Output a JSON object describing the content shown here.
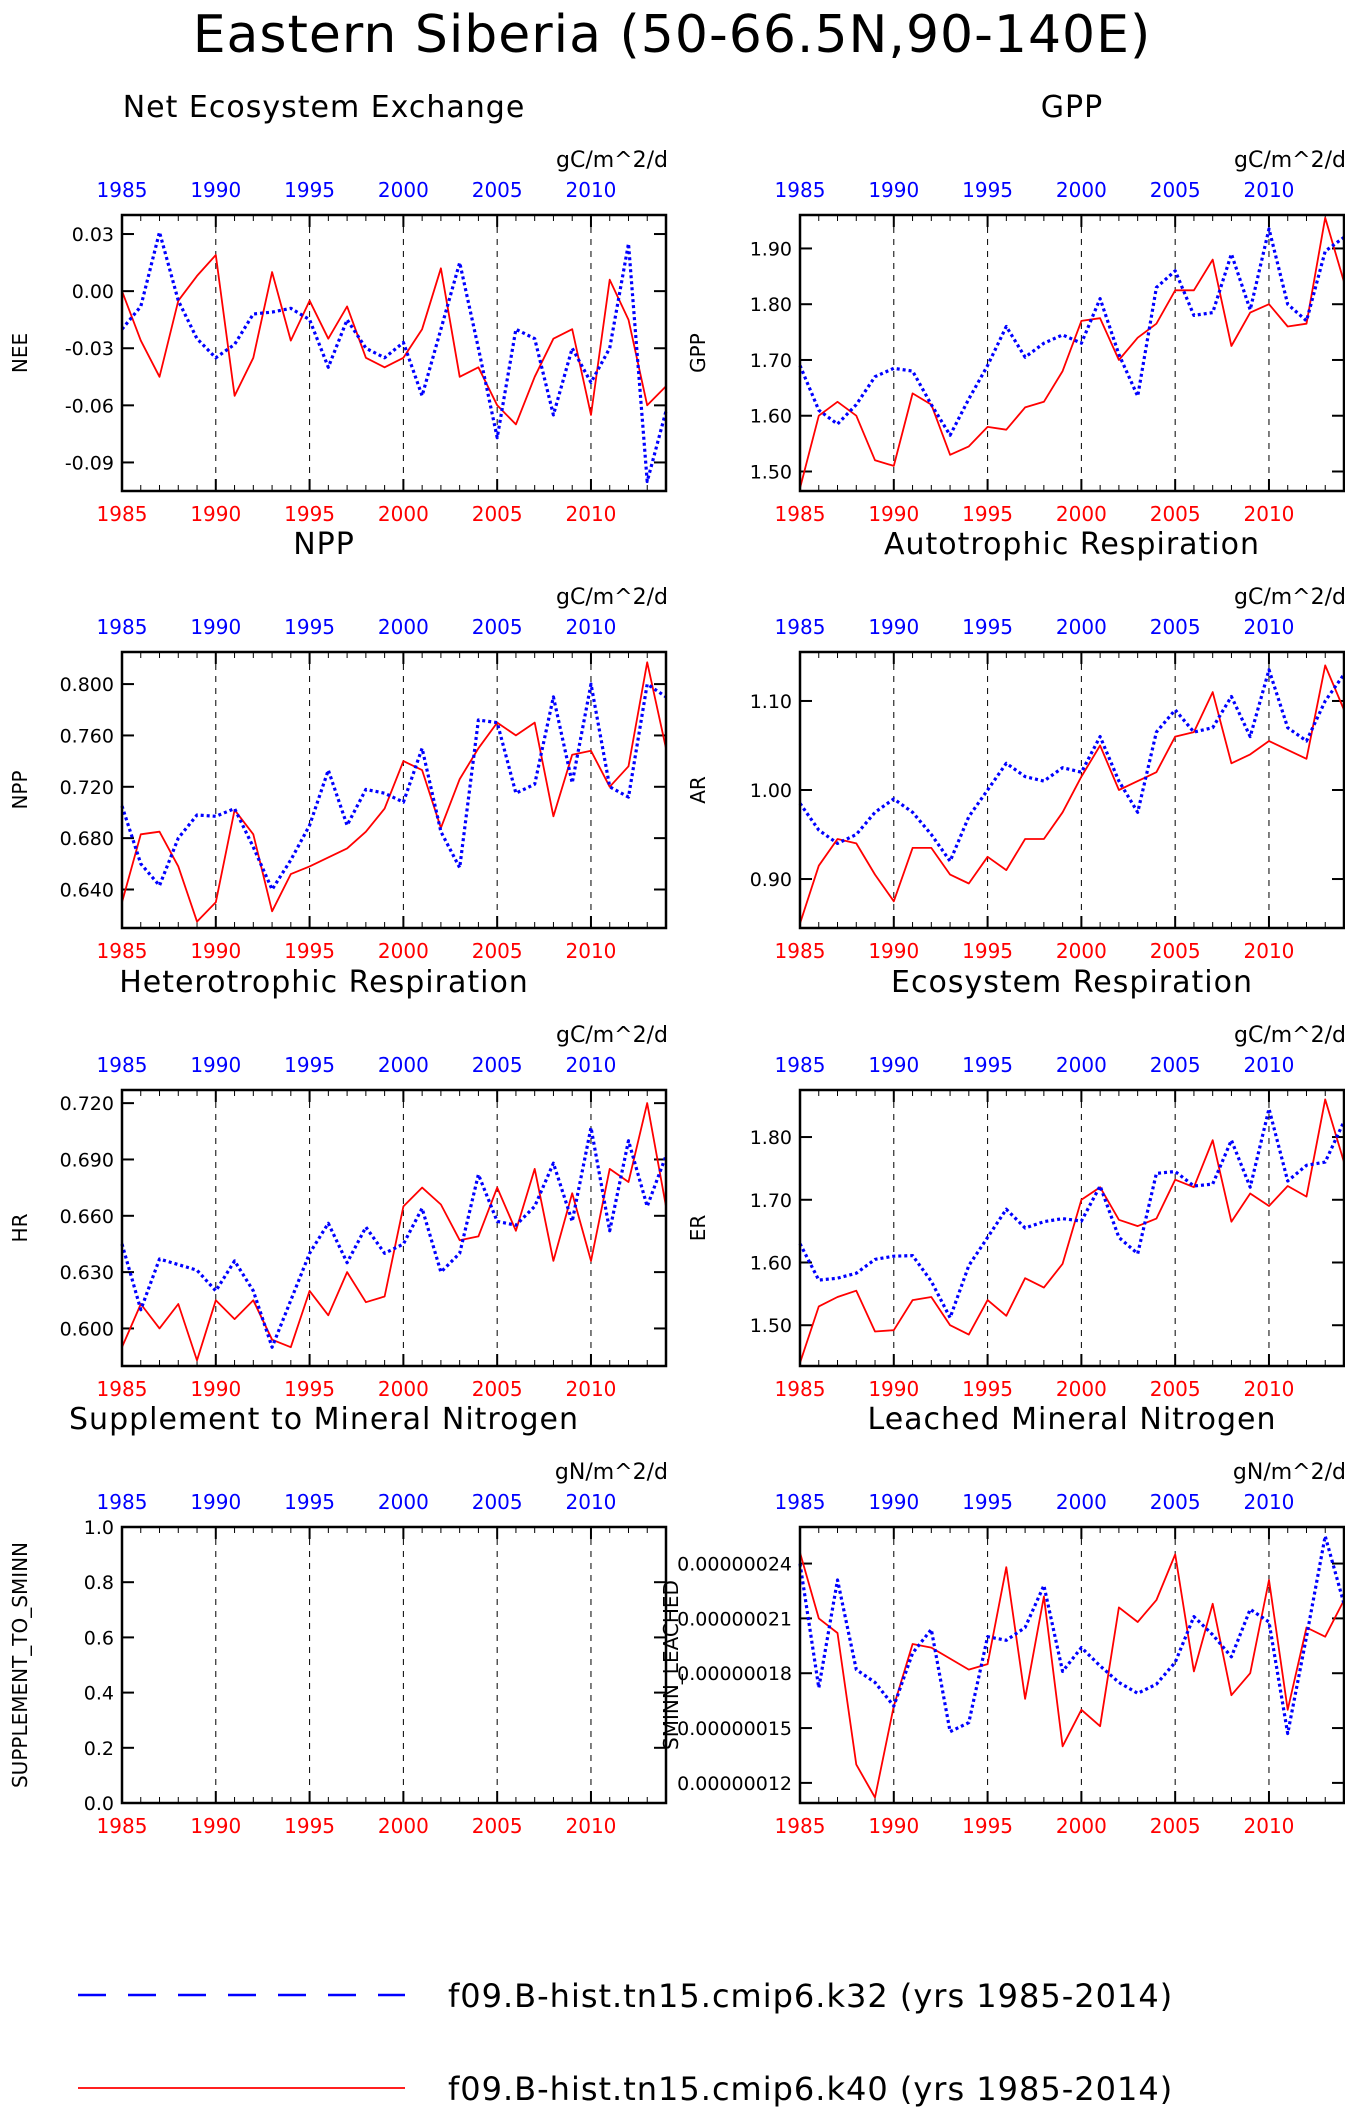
{
  "figure": {
    "title": "Eastern Siberia (50-66.5N,90-140E)",
    "colors": {
      "k32": "#0000ff",
      "k40": "#ff0000",
      "axes": "#000000"
    }
  },
  "legend": [
    {
      "name": "f09.B-hist.tn15.cmip6.k32 (yrs 1985-2014)",
      "color": "#0000ff",
      "style": "dashed"
    },
    {
      "name": "f09.B-hist.tn15.cmip6.k40 (yrs 1985-2014)",
      "color": "#ff0000",
      "style": "solid"
    }
  ],
  "chart_data": [
    {
      "type": "line",
      "title": "Net Ecosystem Exchange",
      "ylabel": "NEE",
      "units": "gC/m^2/d",
      "xlim": [
        1985,
        2014
      ],
      "ylim": [
        -0.105,
        0.04
      ],
      "xticks": [
        1985,
        1990,
        1995,
        2000,
        2005,
        2010
      ],
      "yticks": [
        0.03,
        0.0,
        -0.03,
        -0.06,
        -0.09
      ],
      "ytick_labels": [
        "0.03",
        "0.00",
        "-0.03",
        "-0.06",
        "-0.09"
      ],
      "x": [
        1985,
        1986,
        1987,
        1988,
        1989,
        1990,
        1991,
        1992,
        1993,
        1994,
        1995,
        1996,
        1997,
        1998,
        1999,
        2000,
        2001,
        2002,
        2003,
        2004,
        2005,
        2006,
        2007,
        2008,
        2009,
        2010,
        2011,
        2012,
        2013,
        2014
      ],
      "series": [
        {
          "name": "f09.B-hist.tn15.cmip6.k32",
          "values": [
            -0.02,
            -0.008,
            0.031,
            -0.005,
            -0.025,
            -0.035,
            -0.028,
            -0.012,
            -0.011,
            -0.009,
            -0.015,
            -0.04,
            -0.015,
            -0.03,
            -0.035,
            -0.027,
            -0.055,
            -0.02,
            0.015,
            -0.03,
            -0.077,
            -0.02,
            -0.025,
            -0.065,
            -0.03,
            -0.048,
            -0.03,
            0.025,
            -0.1,
            -0.063
          ]
        },
        {
          "name": "f09.B-hist.tn15.cmip6.k40",
          "values": [
            0.0,
            -0.026,
            -0.045,
            -0.005,
            0.008,
            0.019,
            -0.055,
            -0.035,
            0.01,
            -0.026,
            -0.005,
            -0.025,
            -0.008,
            -0.035,
            -0.04,
            -0.035,
            -0.02,
            0.012,
            -0.045,
            -0.04,
            -0.06,
            -0.07,
            -0.045,
            -0.025,
            -0.02,
            -0.065,
            0.006,
            -0.015,
            -0.06,
            -0.05
          ]
        }
      ]
    },
    {
      "type": "line",
      "title": "GPP",
      "ylabel": "GPP",
      "units": "gC/m^2/d",
      "xlim": [
        1985,
        2014
      ],
      "ylim": [
        1.465,
        1.96
      ],
      "xticks": [
        1985,
        1990,
        1995,
        2000,
        2005,
        2010
      ],
      "yticks": [
        1.9,
        1.8,
        1.7,
        1.6,
        1.5
      ],
      "ytick_labels": [
        "1.90",
        "1.80",
        "1.70",
        "1.60",
        "1.50"
      ],
      "x": [
        1985,
        1986,
        1987,
        1988,
        1989,
        1990,
        1991,
        1992,
        1993,
        1994,
        1995,
        1996,
        1997,
        1998,
        1999,
        2000,
        2001,
        2002,
        2003,
        2004,
        2005,
        2006,
        2007,
        2008,
        2009,
        2010,
        2011,
        2012,
        2013,
        2014
      ],
      "series": [
        {
          "name": "f09.B-hist.tn15.cmip6.k32",
          "values": [
            1.69,
            1.61,
            1.585,
            1.62,
            1.67,
            1.685,
            1.68,
            1.62,
            1.565,
            1.63,
            1.69,
            1.76,
            1.705,
            1.73,
            1.745,
            1.73,
            1.81,
            1.71,
            1.635,
            1.83,
            1.86,
            1.78,
            1.785,
            1.89,
            1.79,
            1.935,
            1.8,
            1.77,
            1.895,
            1.92
          ]
        },
        {
          "name": "f09.B-hist.tn15.cmip6.k40",
          "values": [
            1.47,
            1.6,
            1.625,
            1.6,
            1.52,
            1.51,
            1.64,
            1.62,
            1.53,
            1.545,
            1.58,
            1.575,
            1.615,
            1.625,
            1.68,
            1.77,
            1.775,
            1.7,
            1.74,
            1.765,
            1.825,
            1.825,
            1.88,
            1.725,
            1.785,
            1.8,
            1.76,
            1.765,
            1.955,
            1.84
          ]
        }
      ]
    },
    {
      "type": "line",
      "title": "NPP",
      "ylabel": "NPP",
      "units": "gC/m^2/d",
      "xlim": [
        1985,
        2014
      ],
      "ylim": [
        0.61,
        0.825
      ],
      "xticks": [
        1985,
        1990,
        1995,
        2000,
        2005,
        2010
      ],
      "yticks": [
        0.8,
        0.76,
        0.72,
        0.68,
        0.64
      ],
      "ytick_labels": [
        "0.800",
        "0.760",
        "0.720",
        "0.680",
        "0.640"
      ],
      "x": [
        1985,
        1986,
        1987,
        1988,
        1989,
        1990,
        1991,
        1992,
        1993,
        1994,
        1995,
        1996,
        1997,
        1998,
        1999,
        2000,
        2001,
        2002,
        2003,
        2004,
        2005,
        2006,
        2007,
        2008,
        2009,
        2010,
        2011,
        2012,
        2013,
        2014
      ],
      "series": [
        {
          "name": "f09.B-hist.tn15.cmip6.k32",
          "values": [
            0.705,
            0.66,
            0.643,
            0.68,
            0.698,
            0.697,
            0.703,
            0.673,
            0.64,
            0.663,
            0.69,
            0.733,
            0.69,
            0.718,
            0.715,
            0.708,
            0.75,
            0.685,
            0.657,
            0.772,
            0.77,
            0.715,
            0.722,
            0.79,
            0.723,
            0.8,
            0.72,
            0.712,
            0.8,
            0.79
          ]
        },
        {
          "name": "f09.B-hist.tn15.cmip6.k40",
          "values": [
            0.63,
            0.683,
            0.685,
            0.658,
            0.615,
            0.63,
            0.702,
            0.683,
            0.623,
            0.652,
            0.658,
            0.665,
            0.672,
            0.685,
            0.703,
            0.74,
            0.733,
            0.688,
            0.726,
            0.75,
            0.77,
            0.76,
            0.77,
            0.697,
            0.745,
            0.748,
            0.72,
            0.736,
            0.817,
            0.75
          ]
        }
      ]
    },
    {
      "type": "line",
      "title": "Autotrophic Respiration",
      "ylabel": "AR",
      "units": "gC/m^2/d",
      "xlim": [
        1985,
        2014
      ],
      "ylim": [
        0.845,
        1.155
      ],
      "xticks": [
        1985,
        1990,
        1995,
        2000,
        2005,
        2010
      ],
      "yticks": [
        1.1,
        1.0,
        0.9
      ],
      "ytick_labels": [
        "1.10",
        "1.00",
        "0.90"
      ],
      "x": [
        1985,
        1986,
        1987,
        1988,
        1989,
        1990,
        1991,
        1992,
        1993,
        1994,
        1995,
        1996,
        1997,
        1998,
        1999,
        2000,
        2001,
        2002,
        2003,
        2004,
        2005,
        2006,
        2007,
        2008,
        2009,
        2010,
        2011,
        2012,
        2013,
        2014
      ],
      "series": [
        {
          "name": "f09.B-hist.tn15.cmip6.k32",
          "values": [
            0.985,
            0.955,
            0.94,
            0.95,
            0.975,
            0.99,
            0.975,
            0.95,
            0.92,
            0.97,
            1.0,
            1.03,
            1.015,
            1.01,
            1.025,
            1.02,
            1.06,
            1.01,
            0.975,
            1.065,
            1.09,
            1.065,
            1.07,
            1.105,
            1.06,
            1.135,
            1.07,
            1.055,
            1.1,
            1.13
          ]
        },
        {
          "name": "f09.B-hist.tn15.cmip6.k40",
          "values": [
            0.85,
            0.915,
            0.945,
            0.94,
            0.905,
            0.875,
            0.935,
            0.935,
            0.905,
            0.895,
            0.925,
            0.91,
            0.945,
            0.945,
            0.975,
            1.015,
            1.05,
            1.0,
            1.01,
            1.02,
            1.06,
            1.065,
            1.11,
            1.03,
            1.04,
            1.055,
            1.045,
            1.035,
            1.14,
            1.09
          ]
        }
      ]
    },
    {
      "type": "line",
      "title": "Heterotrophic Respiration",
      "ylabel": "HR",
      "units": "gC/m^2/d",
      "xlim": [
        1985,
        2014
      ],
      "ylim": [
        0.58,
        0.727
      ],
      "xticks": [
        1985,
        1990,
        1995,
        2000,
        2005,
        2010
      ],
      "yticks": [
        0.72,
        0.69,
        0.66,
        0.63,
        0.6
      ],
      "ytick_labels": [
        "0.720",
        "0.690",
        "0.660",
        "0.630",
        "0.600"
      ],
      "x": [
        1985,
        1986,
        1987,
        1988,
        1989,
        1990,
        1991,
        1992,
        1993,
        1994,
        1995,
        1996,
        1997,
        1998,
        1999,
        2000,
        2001,
        2002,
        2003,
        2004,
        2005,
        2006,
        2007,
        2008,
        2009,
        2010,
        2011,
        2012,
        2013,
        2014
      ],
      "series": [
        {
          "name": "f09.B-hist.tn15.cmip6.k32",
          "values": [
            0.645,
            0.61,
            0.637,
            0.634,
            0.631,
            0.62,
            0.636,
            0.62,
            0.59,
            0.615,
            0.64,
            0.656,
            0.635,
            0.654,
            0.64,
            0.645,
            0.664,
            0.63,
            0.64,
            0.682,
            0.657,
            0.655,
            0.665,
            0.688,
            0.657,
            0.707,
            0.652,
            0.7,
            0.665,
            0.692
          ]
        },
        {
          "name": "f09.B-hist.tn15.cmip6.k40",
          "values": [
            0.59,
            0.613,
            0.6,
            0.613,
            0.583,
            0.615,
            0.605,
            0.615,
            0.594,
            0.59,
            0.62,
            0.607,
            0.63,
            0.614,
            0.617,
            0.665,
            0.675,
            0.666,
            0.647,
            0.649,
            0.675,
            0.652,
            0.685,
            0.636,
            0.672,
            0.636,
            0.685,
            0.678,
            0.72,
            0.665
          ]
        }
      ]
    },
    {
      "type": "line",
      "title": "Ecosystem Respiration",
      "ylabel": "ER",
      "units": "gC/m^2/d",
      "xlim": [
        1985,
        2014
      ],
      "ylim": [
        1.435,
        1.875
      ],
      "xticks": [
        1985,
        1990,
        1995,
        2000,
        2005,
        2010
      ],
      "yticks": [
        1.8,
        1.7,
        1.6,
        1.5
      ],
      "ytick_labels": [
        "1.80",
        "1.70",
        "1.60",
        "1.50"
      ],
      "x": [
        1985,
        1986,
        1987,
        1988,
        1989,
        1990,
        1991,
        1992,
        1993,
        1994,
        1995,
        1996,
        1997,
        1998,
        1999,
        2000,
        2001,
        2002,
        2003,
        2004,
        2005,
        2006,
        2007,
        2008,
        2009,
        2010,
        2011,
        2012,
        2013,
        2014
      ],
      "series": [
        {
          "name": "f09.B-hist.tn15.cmip6.k32",
          "values": [
            1.63,
            1.572,
            1.575,
            1.583,
            1.605,
            1.61,
            1.611,
            1.57,
            1.512,
            1.595,
            1.64,
            1.685,
            1.655,
            1.665,
            1.67,
            1.666,
            1.722,
            1.64,
            1.614,
            1.742,
            1.745,
            1.722,
            1.725,
            1.795,
            1.72,
            1.845,
            1.73,
            1.755,
            1.76,
            1.825
          ]
        },
        {
          "name": "f09.B-hist.tn15.cmip6.k40",
          "values": [
            1.44,
            1.53,
            1.545,
            1.555,
            1.49,
            1.492,
            1.54,
            1.545,
            1.5,
            1.485,
            1.54,
            1.515,
            1.575,
            1.56,
            1.598,
            1.7,
            1.72,
            1.668,
            1.658,
            1.67,
            1.732,
            1.72,
            1.795,
            1.665,
            1.71,
            1.69,
            1.722,
            1.705,
            1.86,
            1.76
          ]
        }
      ]
    },
    {
      "type": "line",
      "title": "Supplement to Mineral Nitrogen",
      "ylabel": "SUPPLEMENT_TO_SMINN",
      "units": "gN/m^2/d",
      "xlim": [
        1985,
        2014
      ],
      "ylim": [
        0,
        1
      ],
      "xticks": [
        1985,
        1990,
        1995,
        2000,
        2005,
        2010
      ],
      "yticks": [
        1.0,
        0.8,
        0.6,
        0.4,
        0.2,
        0.0
      ],
      "ytick_labels": [
        "1.0",
        "0.8",
        "0.6",
        "0.4",
        "0.2",
        "0.0"
      ],
      "x": [],
      "series": []
    },
    {
      "type": "line",
      "title": "Leached Mineral Nitrogen",
      "ylabel": "SMINN_LEACHED",
      "units": "gN/m^2/d",
      "xlim": [
        1985,
        2014
      ],
      "ylim": [
        1.09e-07,
        2.6e-07
      ],
      "xticks": [
        1985,
        1990,
        1995,
        2000,
        2005,
        2010
      ],
      "yticks": [
        2.4e-07,
        2.1e-07,
        1.8e-07,
        1.5e-07,
        1.2e-07
      ],
      "ytick_labels": [
        "0.00000024",
        "0.00000021",
        "0.00000018",
        "0.00000015",
        "0.00000012"
      ],
      "x": [
        1985,
        1986,
        1987,
        1988,
        1989,
        1990,
        1991,
        1992,
        1993,
        1994,
        1995,
        1996,
        1997,
        1998,
        1999,
        2000,
        2001,
        2002,
        2003,
        2004,
        2005,
        2006,
        2007,
        2008,
        2009,
        2010,
        2011,
        2012,
        2013,
        2014
      ],
      "series": [
        {
          "name": "f09.B-hist.tn15.cmip6.k32",
          "values": [
            2.4e-07,
            1.72e-07,
            2.31e-07,
            1.82e-07,
            1.75e-07,
            1.62e-07,
            1.91e-07,
            2.04e-07,
            1.48e-07,
            1.53e-07,
            2e-07,
            1.98e-07,
            2.05e-07,
            2.28e-07,
            1.81e-07,
            1.94e-07,
            1.84e-07,
            1.75e-07,
            1.69e-07,
            1.74e-07,
            1.86e-07,
            2.11e-07,
            2.01e-07,
            1.89e-07,
            2.15e-07,
            2.08e-07,
            1.47e-07,
            2e-07,
            2.55e-07,
            2.18e-07
          ]
        },
        {
          "name": "f09.B-hist.tn15.cmip6.k40",
          "values": [
            2.46e-07,
            2.1e-07,
            2.02e-07,
            1.3e-07,
            1.12e-07,
            1.62e-07,
            1.96e-07,
            1.94e-07,
            1.88e-07,
            1.82e-07,
            1.85e-07,
            2.38e-07,
            1.66e-07,
            2.22e-07,
            1.4e-07,
            1.6e-07,
            1.51e-07,
            2.16e-07,
            2.08e-07,
            2.2e-07,
            2.45e-07,
            1.81e-07,
            2.18e-07,
            1.68e-07,
            1.8e-07,
            2.31e-07,
            1.6e-07,
            2.05e-07,
            2e-07,
            2.2e-07
          ]
        }
      ]
    }
  ]
}
